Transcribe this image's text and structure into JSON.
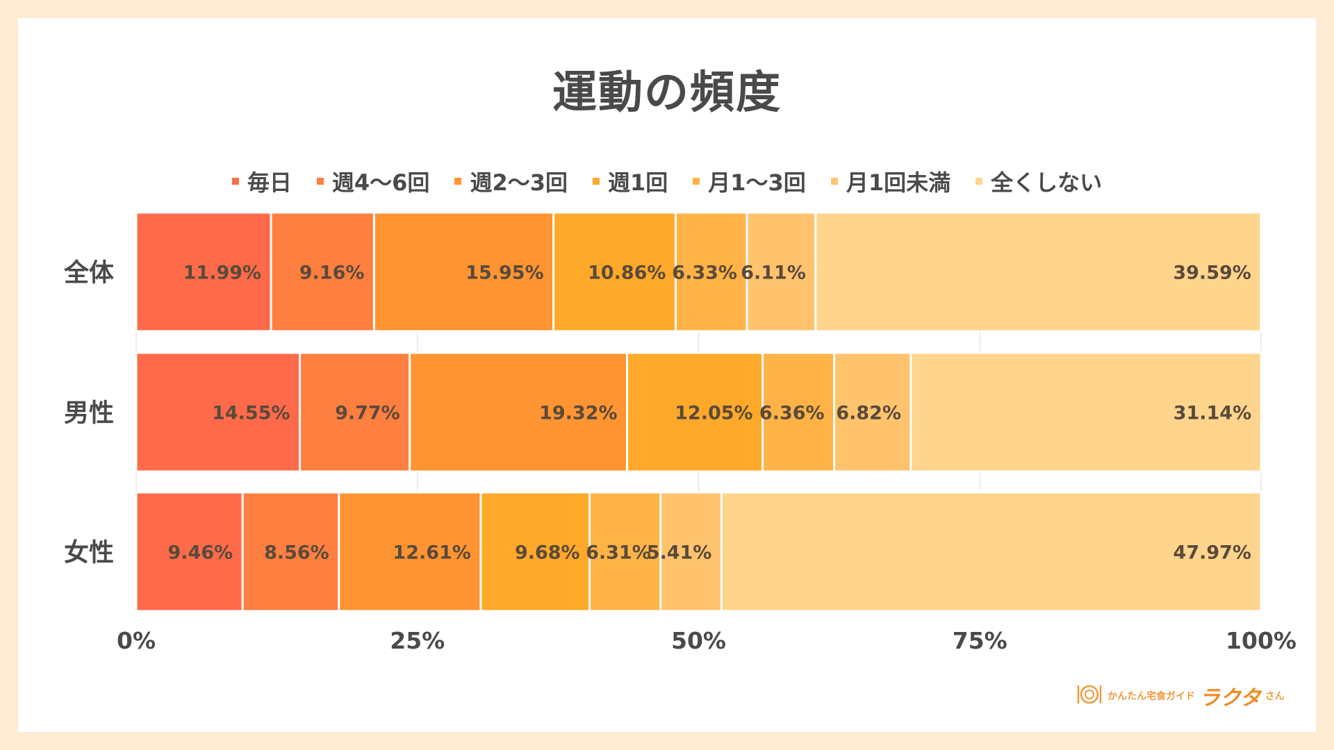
{
  "chart_data": {
    "type": "bar",
    "orientation": "horizontal",
    "stacked": true,
    "title": "運動の頻度",
    "categories": [
      "全体",
      "男性",
      "女性"
    ],
    "series": [
      {
        "name": "毎日",
        "color": "#FF6B4A",
        "values": [
          11.99,
          14.55,
          9.46
        ],
        "labels": [
          "11.99%",
          "14.55%",
          "9.46%"
        ]
      },
      {
        "name": "週4〜6回",
        "color": "#FF7F40",
        "values": [
          9.16,
          9.77,
          8.56
        ],
        "labels": [
          "9.16%",
          "9.77%",
          "8.56%"
        ]
      },
      {
        "name": "週2〜3回",
        "color": "#FF9433",
        "values": [
          15.95,
          19.32,
          12.61
        ],
        "labels": [
          "15.95%",
          "19.32%",
          "12.61%"
        ]
      },
      {
        "name": "週1回",
        "color": "#FFA92A",
        "values": [
          10.86,
          12.05,
          9.68
        ],
        "labels": [
          "10.86%",
          "12.05%",
          "9.68%"
        ]
      },
      {
        "name": "月1〜3回",
        "color": "#FFB347",
        "values": [
          6.33,
          6.36,
          6.31
        ],
        "labels": [
          "6.33%",
          "6.36%",
          "6.31%"
        ]
      },
      {
        "name": "月1回未満",
        "color": "#FFC36E",
        "values": [
          6.11,
          6.82,
          5.41
        ],
        "labels": [
          "6.11%",
          "6.82%",
          "5.41%"
        ]
      },
      {
        "name": "全くしない",
        "color": "#FFD48C",
        "values": [
          39.59,
          31.14,
          47.97
        ],
        "labels": [
          "39.59%",
          "31.14%",
          "47.97%"
        ]
      }
    ],
    "xlim": [
      0,
      100
    ],
    "xticks": [
      "0%",
      "25%",
      "50%",
      "75%",
      "100%"
    ],
    "grid": true,
    "legend_position": "top"
  },
  "logo": {
    "sub": "かんたん宅食ガイド",
    "main": "ラクタ",
    "tail": "さん"
  },
  "colors": {
    "background": "#FDEBD3",
    "text": "#4A4A4A",
    "label": "#5A4A3A",
    "grid": "#E6E6E6"
  }
}
